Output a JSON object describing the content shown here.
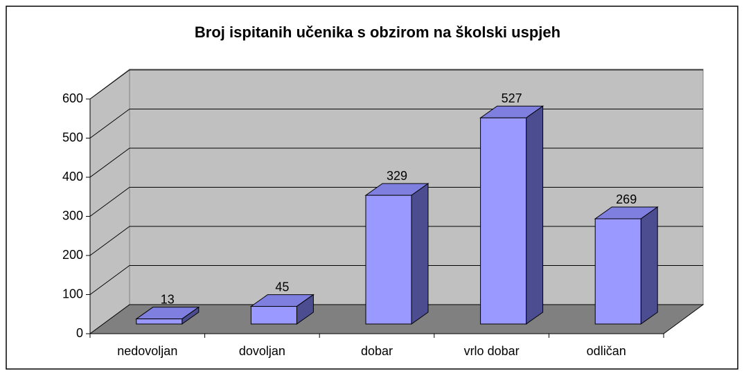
{
  "chart_data": {
    "type": "bar",
    "title": "Broj ispitanih učenika s obzirom na školski uspjeh",
    "categories": [
      "nedovoljan",
      "dovoljan",
      "dobar",
      "vrlo dobar",
      "odličan"
    ],
    "values": [
      13,
      45,
      329,
      527,
      269
    ],
    "color": "#9999ff",
    "ylim": [
      0,
      600
    ],
    "yticks": [
      0,
      100,
      200,
      300,
      400,
      500,
      600
    ],
    "grid": true
  }
}
